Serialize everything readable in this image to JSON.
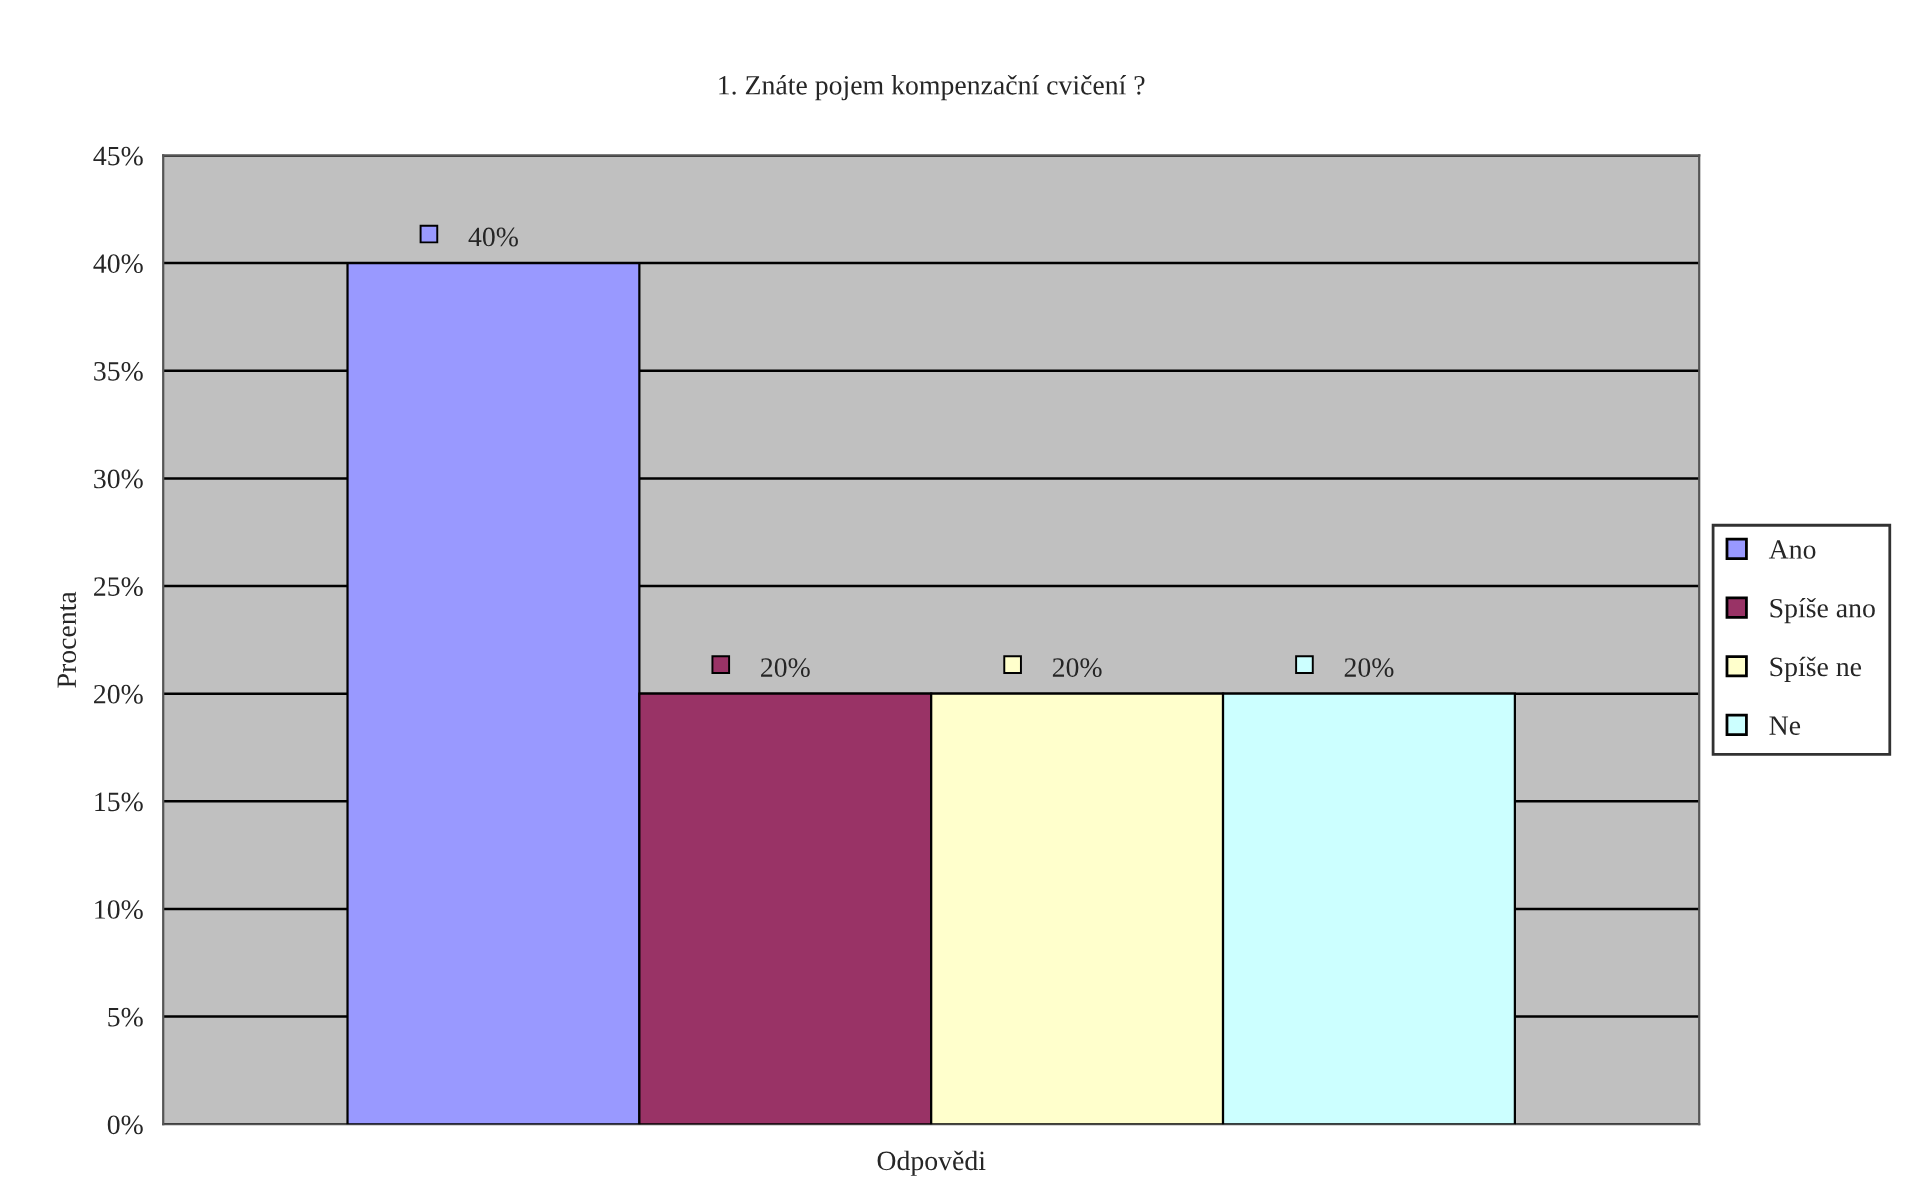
{
  "chart_data": {
    "type": "bar",
    "title": "1. Znáte pojem kompenzační cvičení ?",
    "xlabel": "Odpovědi",
    "ylabel": "Procenta",
    "categories": [
      null
    ],
    "series": [
      {
        "name": "Ano",
        "color": "#9999ff",
        "values": [
          40
        ],
        "value_labels": [
          "40%"
        ]
      },
      {
        "name": "Spíše ano",
        "color": "#993366",
        "values": [
          20
        ],
        "value_labels": [
          "20%"
        ]
      },
      {
        "name": "Spíše ne",
        "color": "#ffffcc",
        "values": [
          20
        ],
        "value_labels": [
          "20%"
        ]
      },
      {
        "name": "Ne",
        "color": "#ccffff",
        "values": [
          20
        ],
        "value_labels": [
          "20%"
        ]
      }
    ],
    "ylim": [
      0,
      45
    ],
    "yticks": [
      {
        "value": 0,
        "label": "0%"
      },
      {
        "value": 5,
        "label": "5%"
      },
      {
        "value": 10,
        "label": "10%"
      },
      {
        "value": 15,
        "label": "15%"
      },
      {
        "value": 20,
        "label": "20%"
      },
      {
        "value": 25,
        "label": "25%"
      },
      {
        "value": 30,
        "label": "30%"
      },
      {
        "value": 35,
        "label": "35%"
      },
      {
        "value": 40,
        "label": "40%"
      },
      {
        "value": 45,
        "label": "45%"
      }
    ],
    "grid": "y",
    "legend": "right"
  }
}
